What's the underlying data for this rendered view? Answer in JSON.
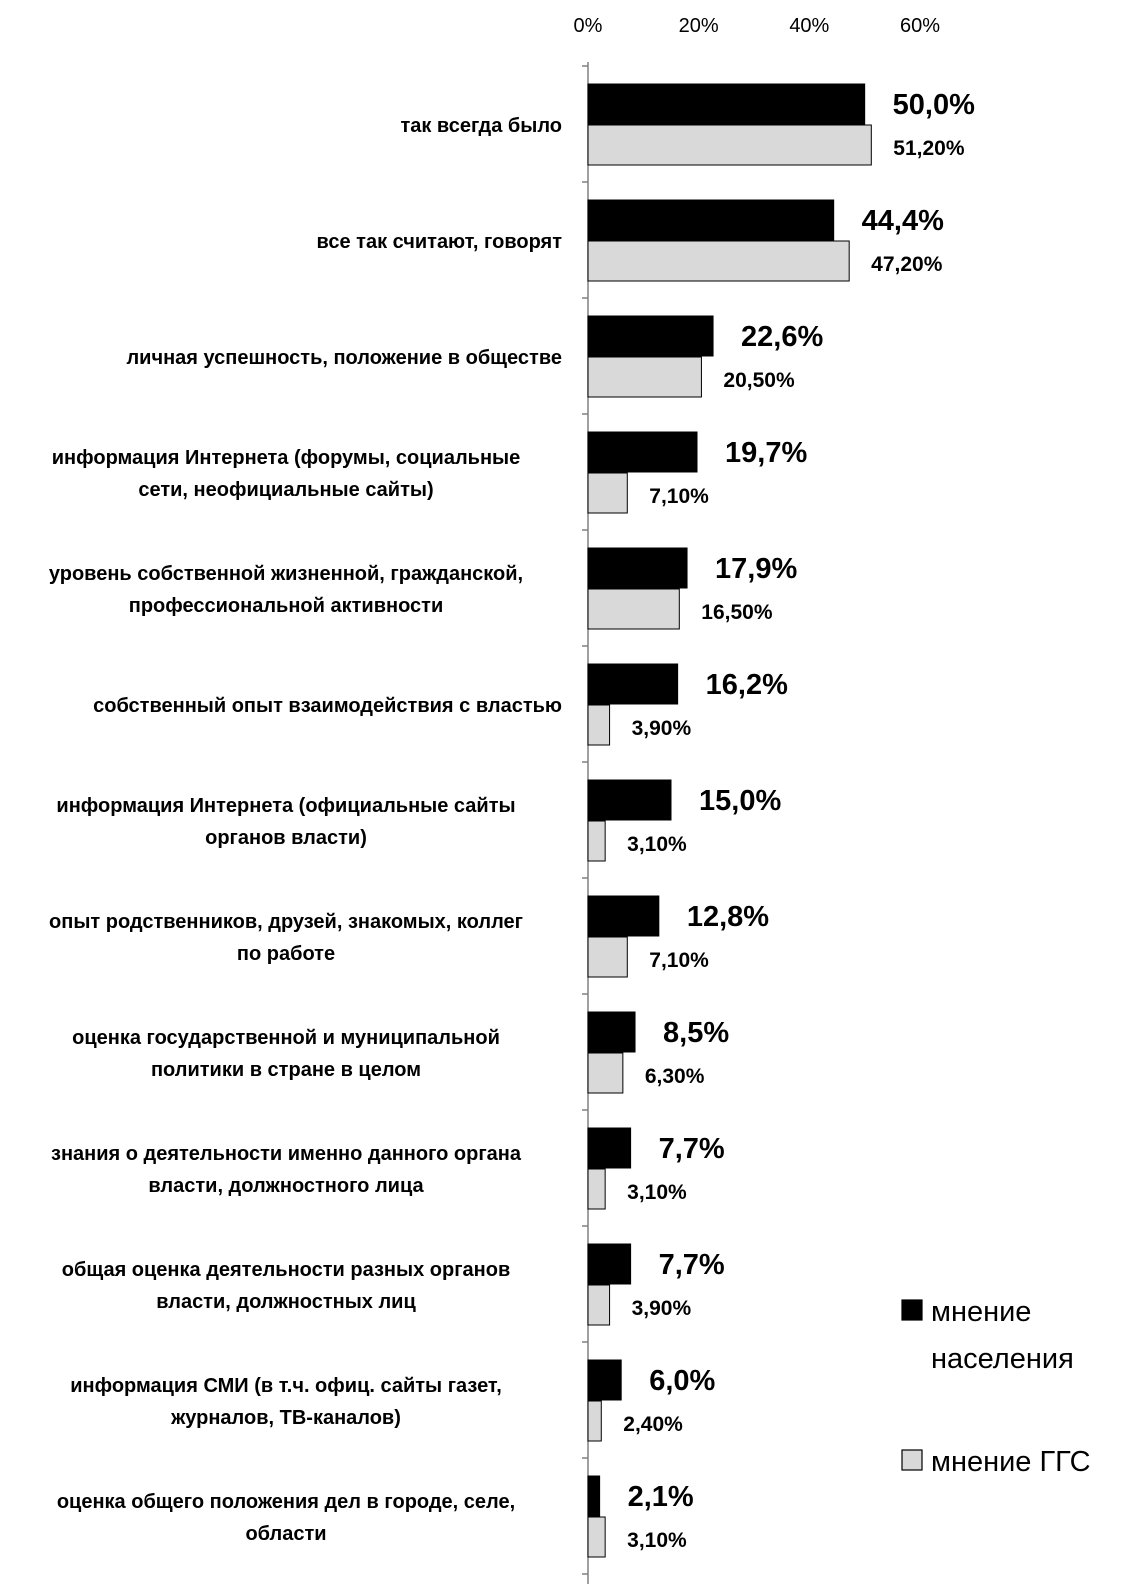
{
  "chart_data": {
    "type": "bar",
    "orientation": "horizontal",
    "title": "",
    "xlabel": "",
    "ylabel": "",
    "xlim": [
      0,
      60
    ],
    "ticks": [
      0,
      20,
      40,
      60
    ],
    "tick_labels": [
      "0%",
      "20%",
      "40%",
      "60%"
    ],
    "grid": false,
    "legend_position": "bottom-right",
    "categories": [
      [
        "так всегда было"
      ],
      [
        "все так считают, говорят"
      ],
      [
        "личная успешность, положение в обществе"
      ],
      [
        "информация Интернета (форумы, социальные",
        "сети, неофициальные сайты)"
      ],
      [
        "уровень собственной жизненной, гражданской,",
        "профессиональной активности"
      ],
      [
        "собственный опыт взаимодействия с властью"
      ],
      [
        "информация Интернета (официальные сайты",
        "органов власти)"
      ],
      [
        "опыт родственников, друзей, знакомых, коллег",
        "по работе"
      ],
      [
        "оценка государственной и муниципальной",
        "политики в стране в целом"
      ],
      [
        "знания о деятельности именно данного органа",
        "власти, должностного лица"
      ],
      [
        "общая оценка деятельности разных органов",
        "власти, должностных лиц"
      ],
      [
        "информация СМИ (в т.ч. офиц. сайты газет,",
        "журналов, ТВ-каналов)"
      ],
      [
        "оценка общего положения дел в городе, селе,",
        "области"
      ]
    ],
    "series": [
      {
        "name": "мнение населения",
        "color": "#000000",
        "values": [
          50.0,
          44.4,
          22.6,
          19.7,
          17.9,
          16.2,
          15.0,
          12.8,
          8.5,
          7.7,
          7.7,
          6.0,
          2.1
        ],
        "labels": [
          "50,0%",
          "44,4%",
          "22,6%",
          "19,7%",
          "17,9%",
          "16,2%",
          "15,0%",
          "12,8%",
          "8,5%",
          "7,7%",
          "7,7%",
          "6,0%",
          "2,1%"
        ]
      },
      {
        "name": "мнение ГГС",
        "color": "#d9d9d9",
        "values": [
          51.2,
          47.2,
          20.5,
          7.1,
          16.5,
          3.9,
          3.1,
          7.1,
          6.3,
          3.1,
          3.9,
          2.4,
          3.1
        ],
        "labels": [
          "51,20%",
          "47,20%",
          "20,50%",
          "7,10%",
          "16,50%",
          "3,90%",
          "3,10%",
          "7,10%",
          "6,30%",
          "3,10%",
          "3,90%",
          "2,40%",
          "3,10%"
        ]
      }
    ],
    "legend_labels": [
      [
        "мнение",
        "населения"
      ],
      [
        "мнение ГГС"
      ]
    ]
  }
}
